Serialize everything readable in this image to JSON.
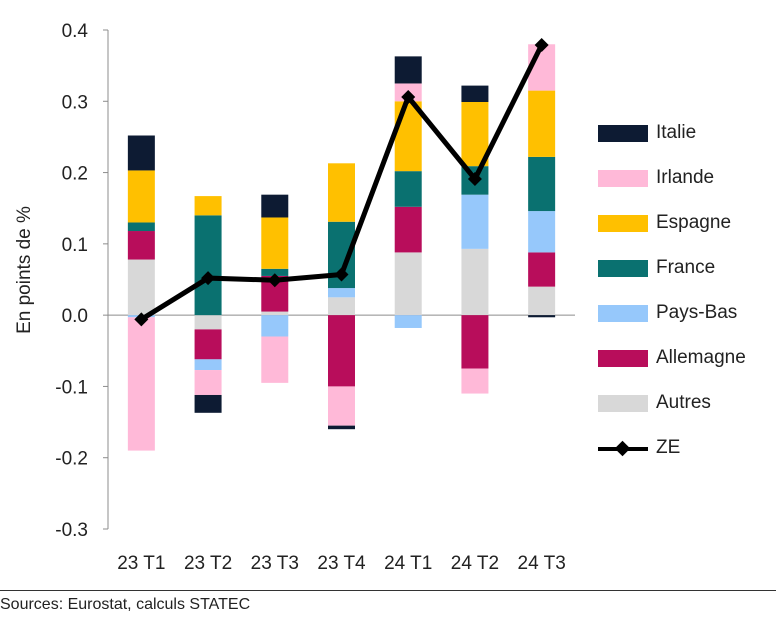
{
  "source": "Sources: Eurostat, calculs STATEC",
  "colors": {
    "Italie": "#0d1b33",
    "Irlande": "#ffb9d8",
    "Espagne": "#ffc000",
    "France": "#0a7170",
    "Pays-Bas": "#96c8fb",
    "Allemagne": "#b80d5b",
    "Autres": "#d8d8d8",
    "ZE": "#000000"
  },
  "chart_data": {
    "type": "bar",
    "stacked": true,
    "categories": [
      "23 T1",
      "23 T2",
      "23 T3",
      "23 T4",
      "24 T1",
      "24 T2",
      "24 T3"
    ],
    "ylabel": "En points de %",
    "ylim": [
      -0.3,
      0.4
    ],
    "yticks": [
      "0.4",
      "0.3",
      "0.2",
      "0.1",
      "0.0",
      "-0.1",
      "-0.2",
      "-0.3"
    ],
    "ytick_values": [
      0.4,
      0.3,
      0.2,
      0.1,
      0.0,
      -0.1,
      -0.2,
      -0.3
    ],
    "legend_position": "right",
    "series": [
      {
        "name": "Autres",
        "values": [
          0.078,
          -0.02,
          0.005,
          0.025,
          0.088,
          0.093,
          0.04
        ]
      },
      {
        "name": "Allemagne",
        "values": [
          0.04,
          -0.042,
          0.05,
          -0.1,
          0.064,
          -0.075,
          0.048
        ]
      },
      {
        "name": "Pays-Bas",
        "values": [
          -0.003,
          -0.015,
          -0.03,
          0.013,
          -0.018,
          0.076,
          0.058
        ]
      },
      {
        "name": "France",
        "values": [
          0.012,
          0.14,
          0.01,
          0.093,
          0.05,
          0.04,
          0.076
        ]
      },
      {
        "name": "Espagne",
        "values": [
          0.073,
          0.027,
          0.072,
          0.082,
          0.098,
          0.09,
          0.093
        ]
      },
      {
        "name": "Irlande",
        "values": [
          -0.187,
          -0.035,
          -0.065,
          -0.055,
          0.025,
          -0.035,
          0.065
        ]
      },
      {
        "name": "Italie",
        "values": [
          0.049,
          -0.025,
          0.032,
          -0.005,
          0.038,
          0.023,
          -0.003
        ]
      }
    ],
    "line_series": {
      "name": "ZE",
      "values": [
        -0.006,
        0.052,
        0.049,
        0.057,
        0.306,
        0.191,
        0.379
      ]
    }
  },
  "legend": {
    "items": [
      {
        "label": "Italie",
        "kind": "box"
      },
      {
        "label": "Irlande",
        "kind": "box"
      },
      {
        "label": "Espagne",
        "kind": "box"
      },
      {
        "label": "France",
        "kind": "box"
      },
      {
        "label": "Pays-Bas",
        "kind": "box"
      },
      {
        "label": "Allemagne",
        "kind": "box"
      },
      {
        "label": "Autres",
        "kind": "box"
      },
      {
        "label": "ZE",
        "kind": "line"
      }
    ]
  }
}
